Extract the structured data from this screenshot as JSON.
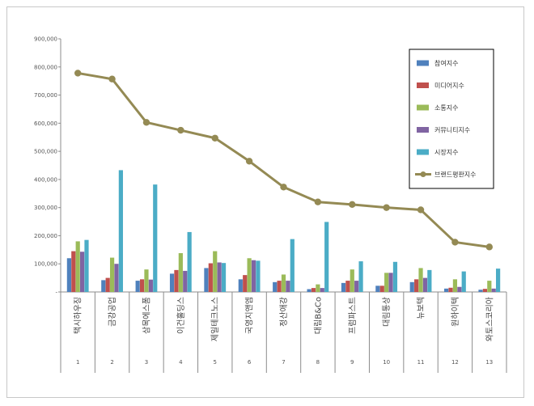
{
  "chart_data": {
    "type": "bar",
    "title": "",
    "xlabel": "",
    "ylabel": "",
    "ylim": [
      0,
      900000
    ],
    "yticks": [
      0,
      100000,
      200000,
      300000,
      400000,
      500000,
      600000,
      700000,
      800000,
      900000
    ],
    "ytick_labels": [
      "-",
      "100,000",
      "200,000",
      "300,000",
      "400,000",
      "500,000",
      "600,000",
      "700,000",
      "800,000",
      "900,000"
    ],
    "grid": false,
    "legend_position": "right",
    "categories": [
      "택시하우징",
      "금강공업",
      "삼목에스폼",
      "이건홀딩스",
      "제일테크노스",
      "국영지앤엠",
      "정산애강",
      "대림B&Co",
      "프럼파스트",
      "대림통상",
      "뉴보텍",
      "원하이텍",
      "와토스코리아"
    ],
    "category_index": [
      "1",
      "2",
      "3",
      "4",
      "5",
      "6",
      "7",
      "8",
      "9",
      "10",
      "11",
      "12",
      "13"
    ],
    "series": [
      {
        "name": "참여지수",
        "kind": "bar",
        "color": "#4f81bd",
        "values": [
          120000,
          42000,
          40000,
          65000,
          85000,
          45000,
          35000,
          10000,
          32000,
          22000,
          35000,
          12000,
          8000
        ]
      },
      {
        "name": "미디어지수",
        "kind": "bar",
        "color": "#c0504d",
        "values": [
          145000,
          50000,
          45000,
          78000,
          102000,
          60000,
          40000,
          14000,
          40000,
          22000,
          45000,
          15000,
          11000
        ]
      },
      {
        "name": "소통지수",
        "kind": "bar",
        "color": "#9bbb59",
        "values": [
          180000,
          122000,
          80000,
          138000,
          145000,
          120000,
          62000,
          27000,
          80000,
          68000,
          85000,
          45000,
          40000
        ]
      },
      {
        "name": "커뮤니티지수",
        "kind": "bar",
        "color": "#8064a2",
        "values": [
          143000,
          100000,
          44000,
          75000,
          105000,
          113000,
          40000,
          14000,
          40000,
          68000,
          50000,
          18000,
          12000
        ]
      },
      {
        "name": "시장지수",
        "kind": "bar",
        "color": "#4bacc6",
        "values": [
          185000,
          433000,
          382000,
          213000,
          103000,
          111000,
          188000,
          249000,
          109000,
          107000,
          78000,
          73000,
          83000
        ]
      },
      {
        "name": "브랜드평판지수",
        "kind": "line",
        "color": "#948a54",
        "values": [
          778000,
          757000,
          603000,
          575000,
          547000,
          465000,
          373000,
          320000,
          311000,
          300000,
          292000,
          177000,
          160000
        ]
      }
    ]
  }
}
